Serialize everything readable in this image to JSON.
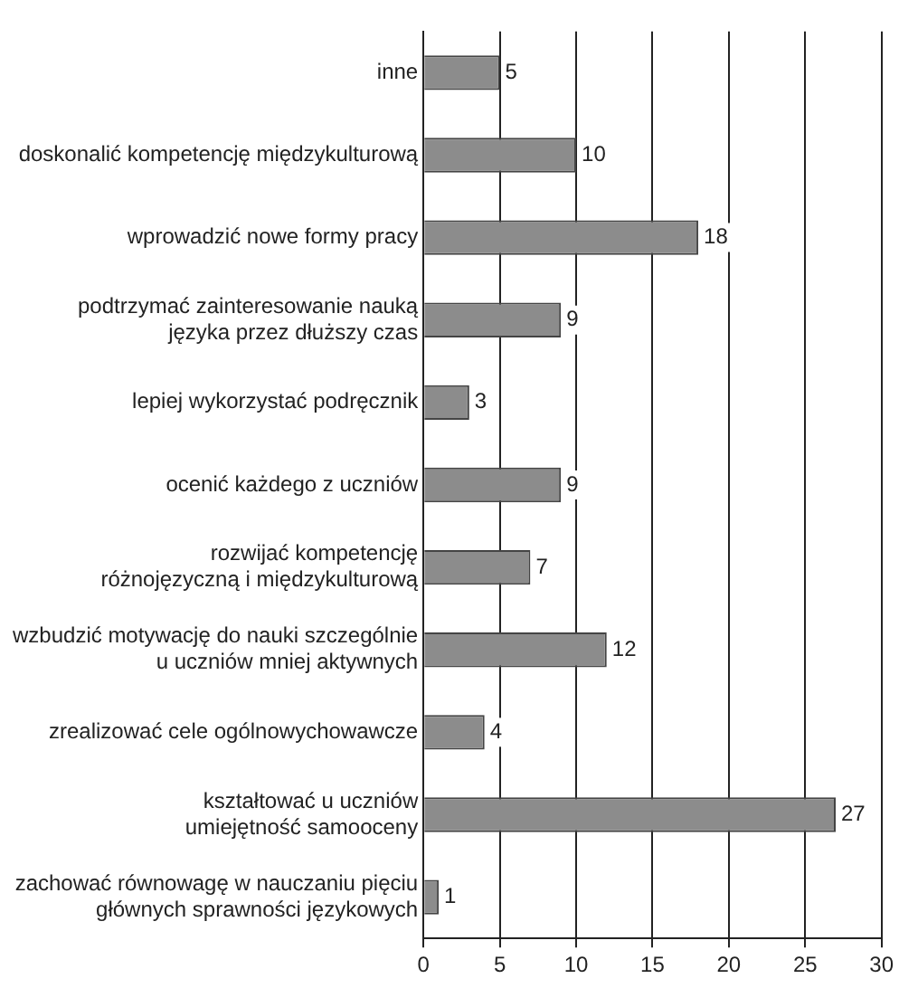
{
  "chart_data": {
    "type": "bar",
    "orientation": "horizontal",
    "categories": [
      "inne",
      "doskonalić kompetencję międzykulturową",
      "wprowadzić nowe formy pracy",
      "podtrzymać zainteresowanie nauką\njęzyka przez dłuższy czas",
      "lepiej wykorzystać podręcznik",
      "ocenić każdego z uczniów",
      "rozwijać kompetencję\nróżnojęzyczną i międzykulturową",
      "wzbudzić motywację do nauki szczególnie\nu uczniów mniej aktywnych",
      "zrealizować cele ogólnowychowawcze",
      "kształtować u uczniów\numiejętność samooceny",
      "zachować równowagę w nauczaniu pięciu\ngłównych sprawności językowych"
    ],
    "values": [
      5,
      10,
      18,
      9,
      3,
      9,
      7,
      12,
      4,
      27,
      1
    ],
    "color": "#8c8c8c",
    "xlim": [
      0,
      30
    ],
    "xticks": [
      0,
      5,
      10,
      15,
      20,
      25,
      30
    ],
    "grid": "x",
    "data_labels": true,
    "legend": false
  }
}
